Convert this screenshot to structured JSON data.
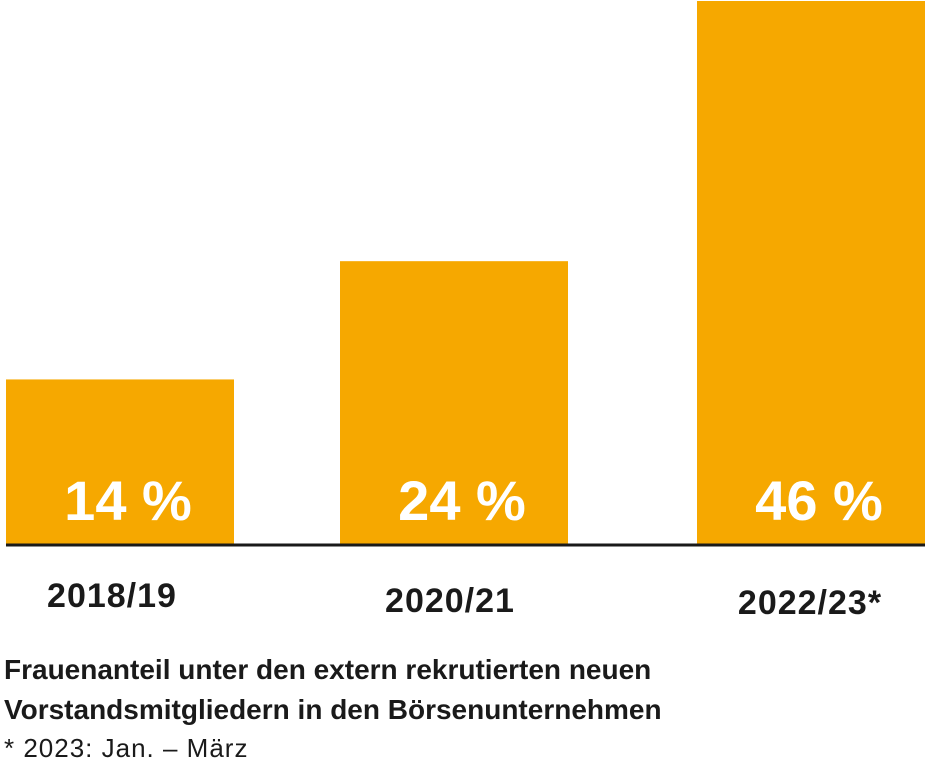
{
  "colors": {
    "bar": "#F6A800",
    "value_label": "#ffffff",
    "axis": "#1a1a1a",
    "text": "#1a1a1a"
  },
  "chart_data": {
    "type": "bar",
    "categories": [
      "2018/19",
      "2020/21",
      "2022/23*"
    ],
    "values": [
      14,
      24,
      46
    ],
    "value_labels": [
      "14 %",
      "24 %",
      "46 %"
    ],
    "ylim": [
      0,
      46
    ],
    "grid": false,
    "legend": "none"
  },
  "caption": {
    "line1": "Frauenanteil unter den extern rekrutierten neuen",
    "line2": "Vorstandsmitgliedern in den Börsenunternehmen",
    "footnote": "* 2023: Jan. – März"
  }
}
